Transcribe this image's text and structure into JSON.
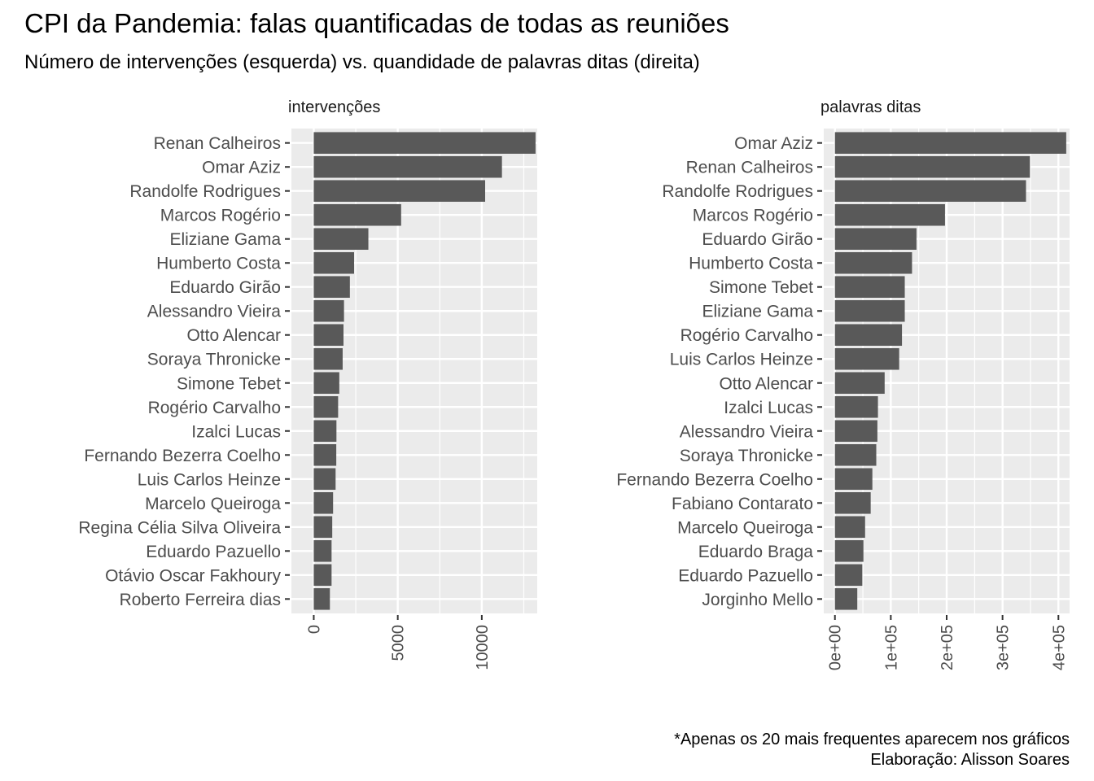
{
  "title": "CPI da Pandemia: falas quantificadas de todas as reuniões",
  "subtitle": "Número de intervenções (esquerda) vs. quandidade de palavras ditas (direita)",
  "caption": {
    "line1": "*Apenas os 20 mais frequentes aparecem nos gráficos",
    "line2": "Elaboração: Alisson Soares"
  },
  "colors": {
    "panel": "#ebebeb",
    "grid": "#ffffff",
    "bar": "#595959"
  },
  "chart_data": [
    {
      "type": "bar",
      "orientation": "horizontal",
      "panel_title": "intervenções",
      "xlim": [
        -1330,
        13300
      ],
      "ticks": [
        {
          "value": 0,
          "label": "0"
        },
        {
          "value": 5000,
          "label": "5000"
        },
        {
          "value": 10000,
          "label": "10000"
        }
      ],
      "minor_ticks": [
        2500,
        7500,
        12500
      ],
      "categories": [
        "Renan Calheiros",
        "Omar Aziz",
        "Randolfe Rodrigues",
        "Marcos Rogério",
        "Eliziane Gama",
        "Humberto Costa",
        "Eduardo Girão",
        "Alessandro Vieira",
        "Otto Alencar",
        "Soraya Thronicke",
        "Simone Tebet",
        "Rogério Carvalho",
        "Izalci Lucas",
        "Fernando Bezerra Coelho",
        "Luis Carlos Heinze",
        "Marcelo Queiroga",
        "Regina Célia Silva Oliveira",
        "Eduardo Pazuello",
        "Otávio Oscar Fakhoury",
        "Roberto Ferreira dias"
      ],
      "values": [
        13200,
        11200,
        10200,
        5200,
        3250,
        2400,
        2150,
        1800,
        1770,
        1720,
        1520,
        1450,
        1350,
        1340,
        1300,
        1150,
        1100,
        1060,
        1060,
        960
      ]
    },
    {
      "type": "bar",
      "orientation": "horizontal",
      "panel_title": "palavras ditas",
      "xlim": [
        -20000,
        420000
      ],
      "ticks": [
        {
          "value": 0,
          "label": "0e+00"
        },
        {
          "value": 100000,
          "label": "1e+05"
        },
        {
          "value": 200000,
          "label": "2e+05"
        },
        {
          "value": 300000,
          "label": "3e+05"
        },
        {
          "value": 400000,
          "label": "4e+05"
        }
      ],
      "minor_ticks": [
        50000,
        150000,
        250000,
        350000
      ],
      "categories": [
        "Omar Aziz",
        "Renan Calheiros",
        "Randolfe Rodrigues",
        "Marcos Rogério",
        "Eduardo Girão",
        "Humberto Costa",
        "Simone Tebet",
        "Eliziane Gama",
        "Rogério Carvalho",
        "Luis Carlos Heinze",
        "Otto Alencar",
        "Izalci Lucas",
        "Alessandro Vieira",
        "Soraya Thronicke",
        "Fernando Bezerra Coelho",
        "Fabiano Contarato",
        "Marcelo Queiroga",
        "Eduardo Braga",
        "Eduardo Pazuello",
        "Jorginho Mello"
      ],
      "values": [
        414000,
        349000,
        342000,
        197000,
        146000,
        138000,
        125000,
        125000,
        120000,
        115000,
        89000,
        77000,
        76000,
        74000,
        67000,
        64000,
        54000,
        51000,
        49000,
        40000
      ]
    }
  ]
}
